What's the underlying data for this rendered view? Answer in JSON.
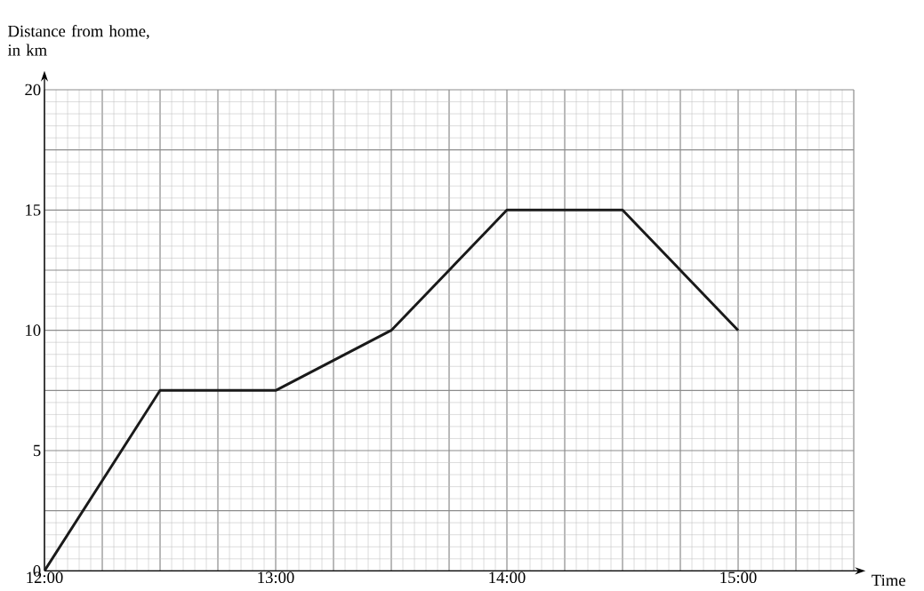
{
  "chart_data": {
    "type": "line",
    "xlabel": "Time",
    "ylabel": "Distance from home, in km",
    "x": [
      12,
      12.5,
      13,
      13.5,
      14,
      14.5,
      15
    ],
    "series": [
      {
        "color": "#1a1a1a",
        "values": [
          0,
          7.5,
          7.5,
          10,
          15,
          15,
          10
        ]
      }
    ],
    "xlim": [
      12,
      15.5
    ],
    "xticks": [
      {
        "value": 12,
        "label": "12:00"
      },
      {
        "value": 12.25,
        "label": null
      },
      {
        "value": 12.5,
        "label": null
      },
      {
        "value": 12.75,
        "label": null
      },
      {
        "value": 13,
        "label": "13:00"
      },
      {
        "value": 13.25,
        "label": null
      },
      {
        "value": 13.5,
        "label": null
      },
      {
        "value": 13.75,
        "label": null
      },
      {
        "value": 14,
        "label": "14:00"
      },
      {
        "value": 14.25,
        "label": null
      },
      {
        "value": 14.5,
        "label": null
      },
      {
        "value": 14.75,
        "label": null
      },
      {
        "value": 15,
        "label": "15:00"
      },
      {
        "value": 15.25,
        "label": null
      },
      {
        "value": 15.5,
        "label": null
      }
    ],
    "ylim": [
      0,
      20
    ],
    "yticks": [
      0,
      {
        "value": 2.5,
        "label": null
      },
      5,
      {
        "value": 7.5,
        "label": null
      },
      10,
      {
        "value": 12.5,
        "label": null
      },
      15,
      {
        "value": 17.5,
        "label": null
      },
      20
    ],
    "grid": true
  }
}
